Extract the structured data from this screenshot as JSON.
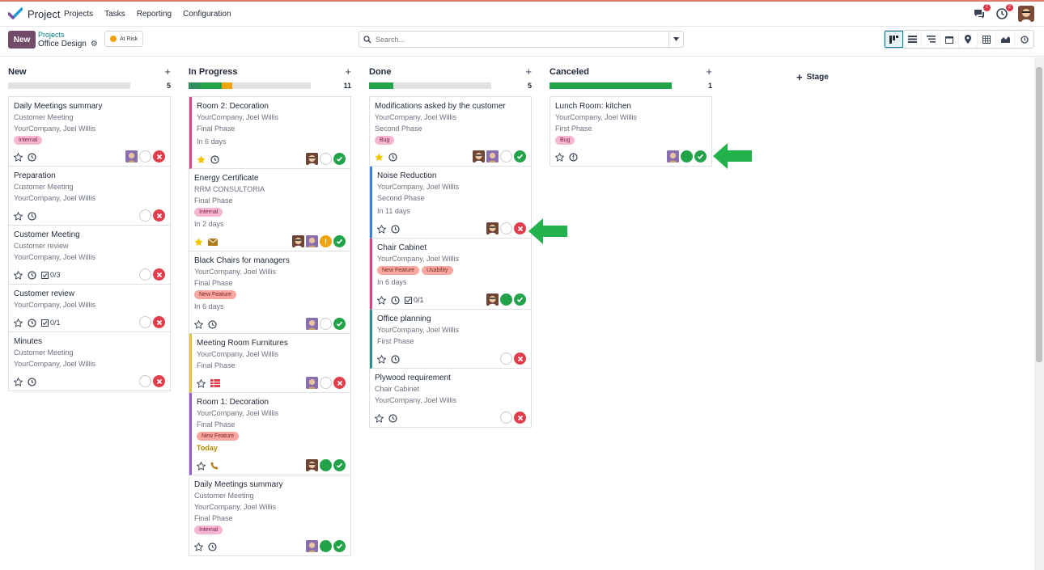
{
  "app": {
    "name": "Project"
  },
  "menu": [
    "Projects",
    "Tasks",
    "Reporting",
    "Configuration"
  ],
  "systray": {
    "messages_count": "7",
    "activity_count": "2"
  },
  "control": {
    "new_label": "New",
    "breadcrumb_parent": "Projects",
    "breadcrumb_current": "Office Design",
    "status_label": "At Risk",
    "search_placeholder": "Search..."
  },
  "add_stage_label": "Stage",
  "colors": {
    "primary": "#714B67",
    "teal": "#017e84",
    "success": "#22a34a",
    "danger": "#e03e4a",
    "warning": "#f0a30a"
  },
  "columns": [
    {
      "title": "New",
      "count": "5",
      "progress": [],
      "cards": [
        {
          "title": "Daily Meetings summary",
          "lines": [
            "Customer Meeting",
            "YourCompany, Joel Willis"
          ],
          "tags": [
            {
              "label": "Internal",
              "color": "pink"
            }
          ],
          "deadline": "",
          "star": false,
          "extra": "",
          "avatars": [
            "f"
          ],
          "status": "x",
          "border": ""
        },
        {
          "title": "Preparation",
          "lines": [
            "Customer Meeting",
            "YourCompany, Joel Willis"
          ],
          "tags": [],
          "deadline": "",
          "star": false,
          "extra": "",
          "avatars": [],
          "status": "x",
          "border": ""
        },
        {
          "title": "Customer Meeting",
          "lines": [
            "Customer review",
            "YourCompany, Joel Willis"
          ],
          "tags": [],
          "deadline": "",
          "star": false,
          "extra": "",
          "checklist": "0/3",
          "avatars": [],
          "status": "x",
          "border": ""
        },
        {
          "title": "Customer review",
          "lines": [
            "YourCompany, Joel Willis"
          ],
          "tags": [],
          "deadline": "",
          "star": false,
          "extra": "",
          "checklist": "0/1",
          "avatars": [],
          "status": "x",
          "border": ""
        },
        {
          "title": "Minutes",
          "lines": [
            "Customer Meeting",
            "YourCompany, Joel Willis"
          ],
          "tags": [],
          "deadline": "",
          "star": false,
          "extra": "",
          "avatars": [],
          "status": "x",
          "border": ""
        }
      ]
    },
    {
      "title": "In Progress",
      "count": "11",
      "progress": [
        {
          "color": "#2f8f5f",
          "pct": 9
        },
        {
          "color": "#22a34a",
          "pct": 18
        },
        {
          "color": "#f0a30a",
          "pct": 9
        }
      ],
      "cards": [
        {
          "title": "Room 2: Decoration",
          "lines": [
            "YourCompany, Joel Willis",
            "Final Phase"
          ],
          "tags": [],
          "deadline": "In 6 days",
          "star": true,
          "extra": "clock",
          "avatars": [
            "m"
          ],
          "status": "ok",
          "border": "bl-pink"
        },
        {
          "title": "Energy Certificate",
          "lines": [
            "RRM CONSULTORIA",
            "Final Phase"
          ],
          "tags": [
            {
              "label": "Internal",
              "color": "pink"
            }
          ],
          "deadline": "In 2 days",
          "star": true,
          "extra": "mail",
          "avatars": [
            "m",
            "f"
          ],
          "status": "ok",
          "warn": true,
          "border": ""
        },
        {
          "title": "Black Chairs for managers",
          "lines": [
            "YourCompany, Joel Willis",
            "Final Phase"
          ],
          "tags": [
            {
              "label": "New Feature",
              "color": "salmon"
            }
          ],
          "deadline": "In 6 days",
          "star": false,
          "extra": "clock",
          "avatars": [
            "f"
          ],
          "status": "ok",
          "border": ""
        },
        {
          "title": "Meeting Room Furnitures",
          "lines": [
            "YourCompany, Joel Willis",
            "Final Phase"
          ],
          "tags": [],
          "deadline": "",
          "star": false,
          "extra": "table",
          "avatars": [
            "f"
          ],
          "status": "x",
          "border": "bl-yellow"
        },
        {
          "title": "Room 1: Decoration",
          "lines": [
            "YourCompany, Joel Willis",
            "Final Phase"
          ],
          "tags": [
            {
              "label": "New Feature",
              "color": "salmon"
            }
          ],
          "deadline": "Today",
          "today": true,
          "star": false,
          "extra": "phone",
          "avatars": [
            "m"
          ],
          "status": "ok",
          "green": true,
          "border": "bl-purple"
        },
        {
          "title": "Daily Meetings summary",
          "lines": [
            "Customer Meeting",
            "YourCompany, Joel Willis",
            "Final Phase"
          ],
          "tags": [
            {
              "label": "Internal",
              "color": "pink"
            }
          ],
          "deadline": "",
          "star": false,
          "extra": "clock",
          "avatars": [
            "f"
          ],
          "status": "ok",
          "green": true,
          "border": ""
        }
      ]
    },
    {
      "title": "Done",
      "count": "5",
      "progress": [
        {
          "color": "#22a34a",
          "pct": 20
        }
      ],
      "cards": [
        {
          "title": "Modifications asked by the customer",
          "lines": [
            "YourCompany, Joel Willis",
            "Second Phase"
          ],
          "tags": [
            {
              "label": "Bug",
              "color": "pink"
            }
          ],
          "deadline": "",
          "star": true,
          "extra": "clock",
          "avatars": [
            "m",
            "f"
          ],
          "status": "ok",
          "border": ""
        },
        {
          "title": "Noise Reduction",
          "lines": [
            "YourCompany, Joel Willis",
            "Second Phase"
          ],
          "tags": [],
          "deadline": "In 11 days",
          "star": false,
          "extra": "clock",
          "avatars": [
            "m"
          ],
          "status": "x",
          "border": "bl-blue"
        },
        {
          "title": "Chair Cabinet",
          "lines": [
            "YourCompany, Joel Willis"
          ],
          "tags": [
            {
              "label": "New Feature",
              "color": "salmon"
            },
            {
              "label": "Usability",
              "color": "salmon"
            }
          ],
          "deadline": "In 6 days",
          "star": false,
          "extra": "clock",
          "checklist": "0/1",
          "avatars": [
            "m"
          ],
          "status": "ok",
          "green": true,
          "border": "bl-pink"
        },
        {
          "title": "Office planning",
          "lines": [
            "YourCompany, Joel Willis",
            "First Phase"
          ],
          "tags": [],
          "deadline": "",
          "star": false,
          "extra": "clock",
          "avatars": [],
          "status": "x",
          "border": "bl-teal"
        },
        {
          "title": "Plywood requirement",
          "lines": [
            "Chair Cabinet",
            "YourCompany, Joel Willis"
          ],
          "tags": [],
          "deadline": "",
          "star": false,
          "extra": "clock",
          "avatars": [],
          "status": "x",
          "border": ""
        }
      ]
    },
    {
      "title": "Canceled",
      "count": "1",
      "progress": [
        {
          "color": "#22a34a",
          "pct": 100
        }
      ],
      "cards": [
        {
          "title": "Lunch Room: kitchen",
          "lines": [
            "YourCompany, Joel Willis",
            "First Phase"
          ],
          "tags": [
            {
              "label": "Bug",
              "color": "pink"
            }
          ],
          "deadline": "",
          "star": false,
          "extra": "warn-clock",
          "avatars": [
            "f"
          ],
          "status": "ok",
          "green": true,
          "border": ""
        }
      ]
    }
  ]
}
